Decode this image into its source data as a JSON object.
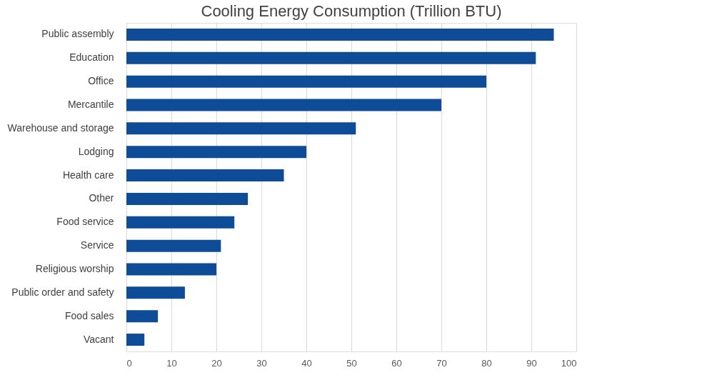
{
  "chart_data": {
    "type": "bar",
    "orientation": "horizontal",
    "title": "Cooling Energy Consumption (Trillion BTU)",
    "categories": [
      "Public assembly",
      "Education",
      "Office",
      "Mercantile",
      "Warehouse and storage",
      "Lodging",
      "Health care",
      "Other",
      "Food service",
      "Service",
      "Religious worship",
      "Public order and safety",
      "Food sales",
      "Vacant"
    ],
    "values": [
      95,
      91,
      80,
      70,
      51,
      40,
      35,
      27,
      24,
      21,
      20,
      13,
      7,
      4
    ],
    "color": "#0e4c97",
    "xlim": [
      0,
      100
    ],
    "xticks": [
      0,
      10,
      20,
      30,
      40,
      50,
      60,
      70,
      80,
      90,
      100
    ],
    "grid": "x"
  }
}
